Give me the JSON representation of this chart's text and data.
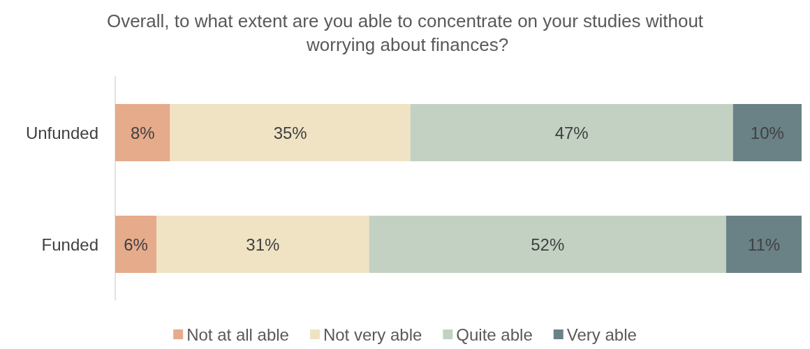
{
  "chart_data": {
    "type": "bar",
    "orientation": "horizontal",
    "stacked": true,
    "title": "Overall, to what extent are you able to concentrate on your studies without worrying about finances?",
    "categories": [
      "Unfunded",
      "Funded"
    ],
    "series": [
      {
        "name": "Not at all able",
        "color": "#e5ab8b",
        "values": [
          8,
          6
        ],
        "value_labels": [
          "8%",
          "6%"
        ]
      },
      {
        "name": "Not very able",
        "color": "#efe3c4",
        "values": [
          35,
          31
        ],
        "value_labels": [
          "35%",
          "31%"
        ]
      },
      {
        "name": "Quite able",
        "color": "#c3d1c3",
        "values": [
          47,
          52
        ],
        "value_labels": [
          "47%",
          "52%"
        ]
      },
      {
        "name": "Very able",
        "color": "#6a8286",
        "values": [
          10,
          11
        ],
        "value_labels": [
          "10%",
          "11%"
        ]
      }
    ],
    "legend": "bottom"
  }
}
